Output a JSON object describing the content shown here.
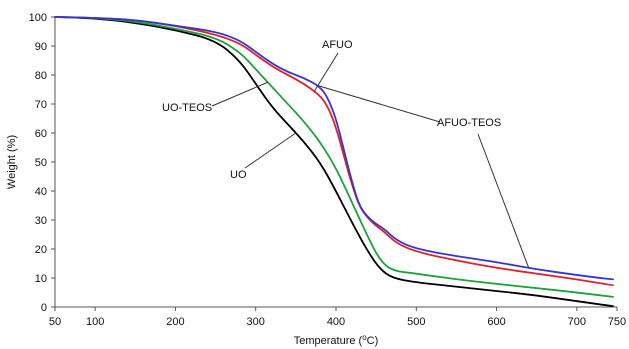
{
  "chart_data": {
    "type": "line",
    "title": "",
    "xlabel_text": "Temperature (",
    "xlabel_unit": "°C",
    "xlabel_close": ")",
    "ylabel": "Weight (%)",
    "xlim": [
      50,
      750
    ],
    "ylim": [
      0,
      100
    ],
    "x_ticks": [
      50,
      100,
      200,
      300,
      400,
      500,
      600,
      700,
      750
    ],
    "y_ticks": [
      0,
      10,
      20,
      30,
      40,
      50,
      60,
      70,
      80,
      90,
      100
    ],
    "grid": false,
    "legend": "none (series identified by annotations with leader lines)",
    "series": [
      {
        "name": "UO",
        "color": "#000000",
        "points": [
          [
            50,
            100
          ],
          [
            100,
            99.6
          ],
          [
            150,
            98
          ],
          [
            200,
            95.5
          ],
          [
            250,
            92
          ],
          [
            280,
            85
          ],
          [
            300,
            77
          ],
          [
            320,
            69
          ],
          [
            340,
            63
          ],
          [
            360,
            57
          ],
          [
            380,
            50
          ],
          [
            400,
            40
          ],
          [
            420,
            29
          ],
          [
            440,
            19
          ],
          [
            455,
            13
          ],
          [
            470,
            10
          ],
          [
            500,
            8.5
          ],
          [
            550,
            7
          ],
          [
            600,
            5.5
          ],
          [
            650,
            4
          ],
          [
            700,
            2
          ],
          [
            745,
            0.3
          ]
        ]
      },
      {
        "name": "UO-TEOS",
        "color": "#1aa33a",
        "points": [
          [
            50,
            100
          ],
          [
            100,
            99.7
          ],
          [
            150,
            98.5
          ],
          [
            200,
            96
          ],
          [
            250,
            93
          ],
          [
            280,
            88
          ],
          [
            300,
            82
          ],
          [
            320,
            76
          ],
          [
            340,
            70
          ],
          [
            360,
            64
          ],
          [
            380,
            57
          ],
          [
            400,
            48
          ],
          [
            420,
            36
          ],
          [
            440,
            24
          ],
          [
            455,
            16
          ],
          [
            470,
            12.5
          ],
          [
            500,
            11.5
          ],
          [
            550,
            9.5
          ],
          [
            600,
            8
          ],
          [
            650,
            6.5
          ],
          [
            700,
            5
          ],
          [
            745,
            3.5
          ]
        ]
      },
      {
        "name": "AFUO",
        "color": "#e0202a",
        "points": [
          [
            50,
            100
          ],
          [
            100,
            99.7
          ],
          [
            150,
            99
          ],
          [
            200,
            97
          ],
          [
            250,
            94
          ],
          [
            280,
            91
          ],
          [
            300,
            87
          ],
          [
            320,
            83
          ],
          [
            340,
            80
          ],
          [
            360,
            77
          ],
          [
            380,
            73
          ],
          [
            390,
            69
          ],
          [
            400,
            62
          ],
          [
            410,
            52
          ],
          [
            420,
            42
          ],
          [
            430,
            34
          ],
          [
            445,
            29
          ],
          [
            460,
            26
          ],
          [
            475,
            22
          ],
          [
            500,
            19
          ],
          [
            550,
            16
          ],
          [
            600,
            13.5
          ],
          [
            650,
            11.5
          ],
          [
            700,
            9.5
          ],
          [
            745,
            7.5
          ]
        ]
      },
      {
        "name": "AFUO-TEOS",
        "color": "#3535d6",
        "points": [
          [
            50,
            100
          ],
          [
            100,
            99.7
          ],
          [
            150,
            99
          ],
          [
            200,
            97
          ],
          [
            250,
            95
          ],
          [
            280,
            92
          ],
          [
            300,
            88
          ],
          [
            320,
            84
          ],
          [
            340,
            81
          ],
          [
            360,
            79
          ],
          [
            380,
            76
          ],
          [
            390,
            72
          ],
          [
            400,
            65
          ],
          [
            410,
            54
          ],
          [
            420,
            43
          ],
          [
            430,
            34
          ],
          [
            445,
            29.5
          ],
          [
            460,
            27
          ],
          [
            475,
            23
          ],
          [
            500,
            20
          ],
          [
            550,
            17.5
          ],
          [
            600,
            15.5
          ],
          [
            650,
            13
          ],
          [
            700,
            11
          ],
          [
            745,
            9.5
          ]
        ]
      }
    ],
    "annotations": [
      {
        "text": "AFUO",
        "target_series": "AFUO"
      },
      {
        "text": "UO-TEOS",
        "target_series": "UO-TEOS"
      },
      {
        "text": "AFUO-TEOS",
        "target_series": "AFUO-TEOS"
      },
      {
        "text": "UO",
        "target_series": "UO"
      }
    ]
  }
}
